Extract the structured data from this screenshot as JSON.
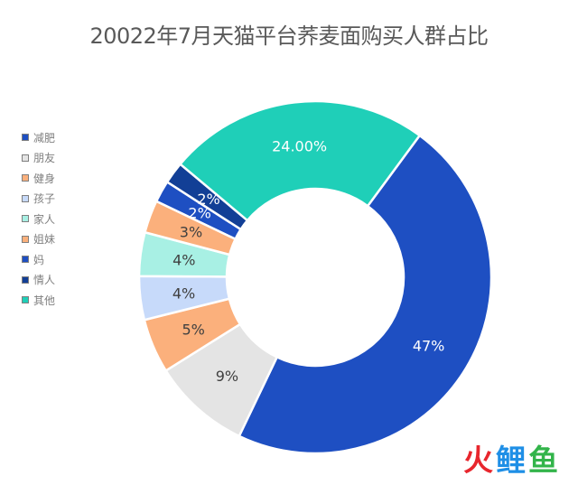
{
  "chart_data": {
    "type": "pie",
    "title": "20022年7月天猫平台荞麦面购买人群占比",
    "legend_position": "left",
    "series": [
      {
        "name": "减肥",
        "value": 47,
        "label": "47%",
        "color": "#1e4fc2"
      },
      {
        "name": "朋友",
        "value": 9,
        "label": "9%",
        "color": "#e4e4e4"
      },
      {
        "name": "健身",
        "value": 5,
        "label": "5%",
        "color": "#fbb07c"
      },
      {
        "name": "孩子",
        "value": 4,
        "label": "4%",
        "color": "#c7dafa"
      },
      {
        "name": "家人",
        "value": 4,
        "label": "4%",
        "color": "#a8f0e4"
      },
      {
        "name": "姐妹",
        "value": 3,
        "label": "3%",
        "color": "#fbb07c"
      },
      {
        "name": "妈",
        "value": 2,
        "label": "2%",
        "color": "#1e4fc2"
      },
      {
        "name": "情人",
        "value": 2,
        "label": "2%",
        "color": "#123f96"
      },
      {
        "name": "其他",
        "value": 24,
        "label": "24.00%",
        "color": "#1fcfb8"
      }
    ]
  },
  "watermark": {
    "chars": [
      "火",
      "鲤",
      "鱼"
    ]
  }
}
